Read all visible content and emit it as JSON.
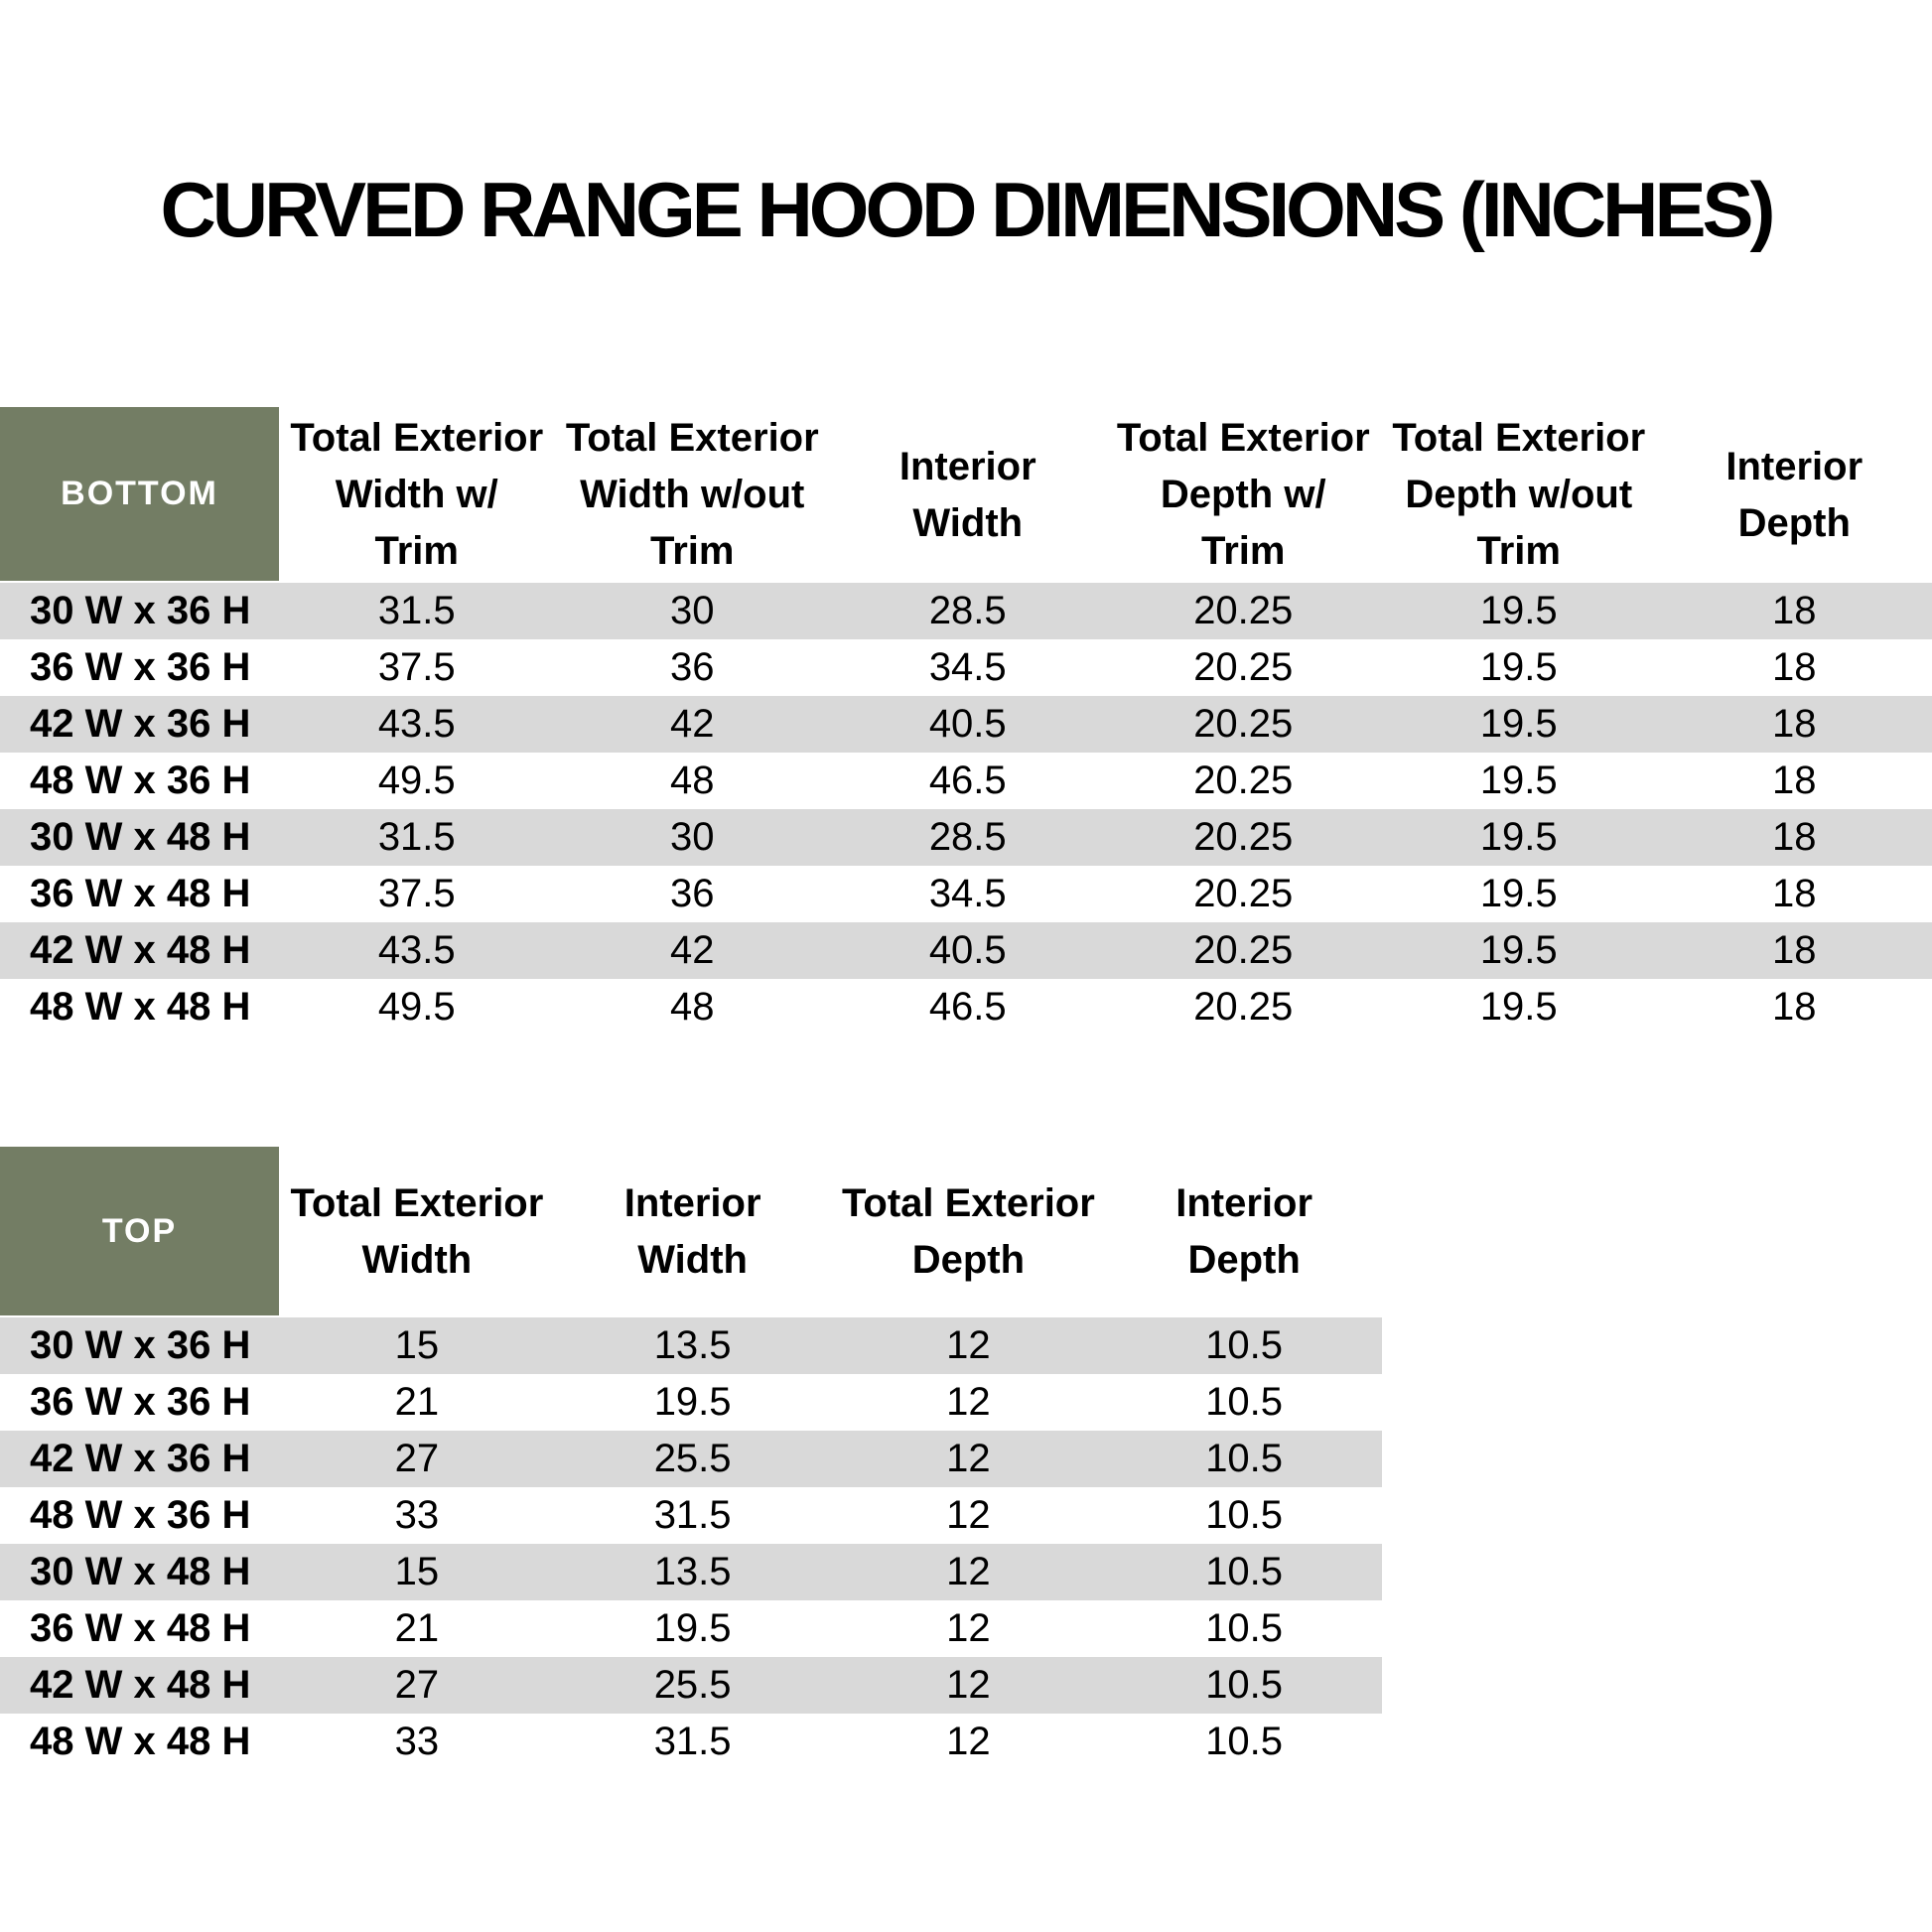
{
  "page": {
    "title": "CURVED RANGE HOOD DIMENSIONS (INCHES)"
  },
  "colors": {
    "header_green": "#737d64",
    "stripe_gray": "#d9d9d9",
    "header_text_white": "#ffffff",
    "text_black": "#000000"
  },
  "bottom_table": {
    "corner_label": "BOTTOM",
    "column_headers": [
      "Total Exterior\nWidth w/\nTrim",
      "Total Exterior\nWidth w/out\nTrim",
      "Interior\nWidth",
      "Total Exterior\nDepth w/\nTrim",
      "Total Exterior\nDepth w/out\nTrim",
      "Interior\nDepth"
    ],
    "rows": [
      {
        "label": "30 W x 36 H",
        "values": [
          "31.5",
          "30",
          "28.5",
          "20.25",
          "19.5",
          "18"
        ]
      },
      {
        "label": "36 W x 36 H",
        "values": [
          "37.5",
          "36",
          "34.5",
          "20.25",
          "19.5",
          "18"
        ]
      },
      {
        "label": "42 W x 36 H",
        "values": [
          "43.5",
          "42",
          "40.5",
          "20.25",
          "19.5",
          "18"
        ]
      },
      {
        "label": "48 W x 36 H",
        "values": [
          "49.5",
          "48",
          "46.5",
          "20.25",
          "19.5",
          "18"
        ]
      },
      {
        "label": "30 W x 48 H",
        "values": [
          "31.5",
          "30",
          "28.5",
          "20.25",
          "19.5",
          "18"
        ]
      },
      {
        "label": "36 W x 48 H",
        "values": [
          "37.5",
          "36",
          "34.5",
          "20.25",
          "19.5",
          "18"
        ]
      },
      {
        "label": "42 W x 48 H",
        "values": [
          "43.5",
          "42",
          "40.5",
          "20.25",
          "19.5",
          "18"
        ]
      },
      {
        "label": "48 W x 48 H",
        "values": [
          "49.5",
          "48",
          "46.5",
          "20.25",
          "19.5",
          "18"
        ]
      }
    ]
  },
  "top_table": {
    "corner_label": "TOP",
    "column_headers": [
      "Total Exterior\nWidth",
      "Interior\nWidth",
      "Total Exterior\nDepth",
      "Interior\nDepth"
    ],
    "rows": [
      {
        "label": "30 W x 36 H",
        "values": [
          "15",
          "13.5",
          "12",
          "10.5"
        ]
      },
      {
        "label": "36 W x 36 H",
        "values": [
          "21",
          "19.5",
          "12",
          "10.5"
        ]
      },
      {
        "label": "42 W x 36 H",
        "values": [
          "27",
          "25.5",
          "12",
          "10.5"
        ]
      },
      {
        "label": "48 W x 36 H",
        "values": [
          "33",
          "31.5",
          "12",
          "10.5"
        ]
      },
      {
        "label": "30 W x 48 H",
        "values": [
          "15",
          "13.5",
          "12",
          "10.5"
        ]
      },
      {
        "label": "36 W x 48 H",
        "values": [
          "21",
          "19.5",
          "12",
          "10.5"
        ]
      },
      {
        "label": "42 W x 48 H",
        "values": [
          "27",
          "25.5",
          "12",
          "10.5"
        ]
      },
      {
        "label": "48 W x 48 H",
        "values": [
          "33",
          "31.5",
          "12",
          "10.5"
        ]
      }
    ]
  }
}
